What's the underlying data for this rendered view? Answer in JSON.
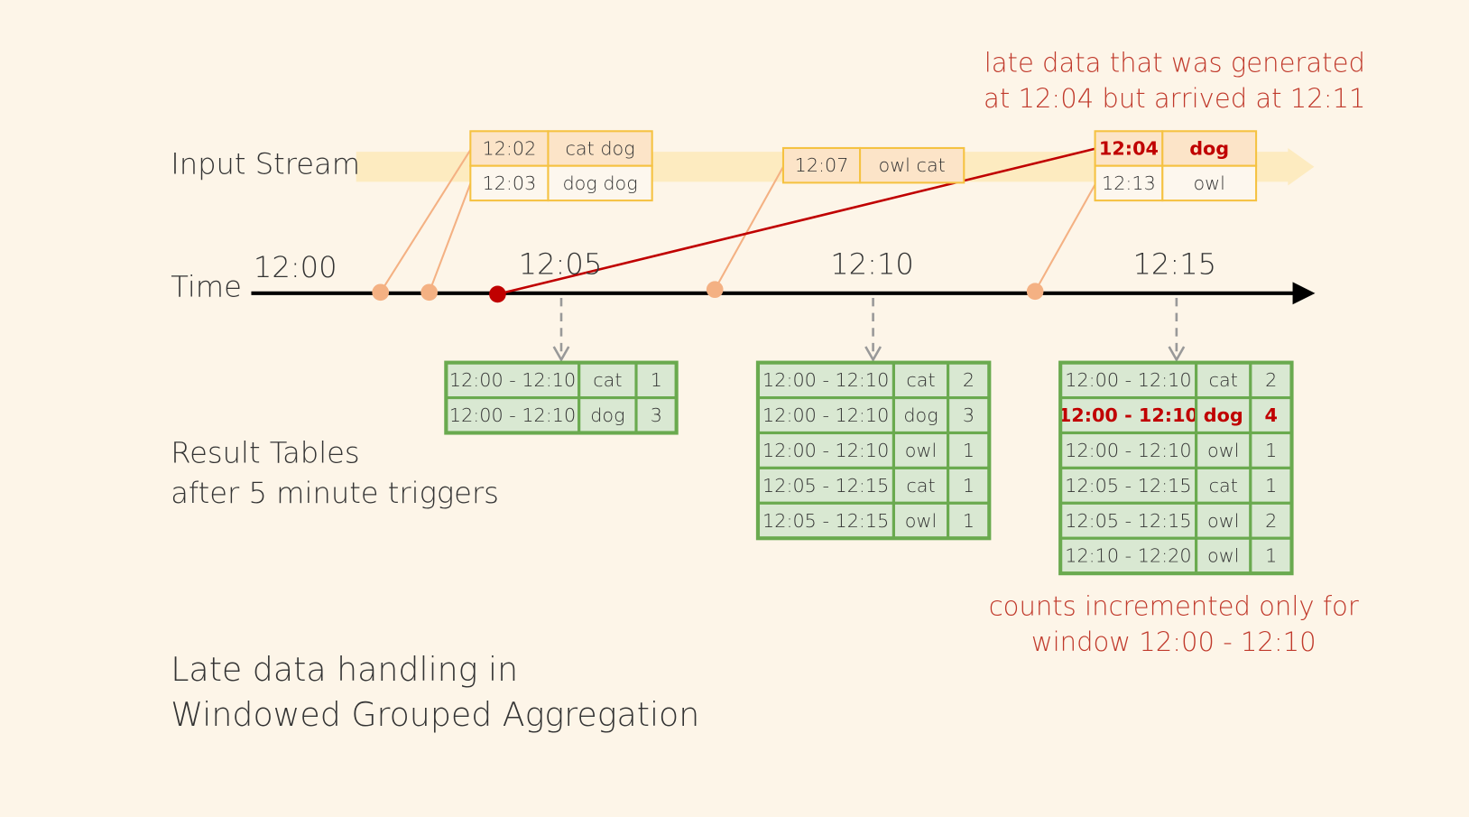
{
  "labels": {
    "input_stream": "Input Stream",
    "time": "Time",
    "result_tables": [
      "Result Tables",
      "after 5 minute triggers"
    ],
    "title": [
      "Late data handling in",
      "Windowed Grouped Aggregation"
    ]
  },
  "annotations": {
    "late_data": [
      "late data that was generated",
      "at 12:04 but arrived at 12:11"
    ],
    "counts": [
      "counts incremented only for",
      "window 12:00 - 12:10"
    ]
  },
  "time_ticks": [
    "12:00",
    "12:05",
    "12:10",
    "12:15"
  ],
  "input_batches": [
    {
      "rows": [
        [
          "12:02",
          "cat dog"
        ],
        [
          "12:03",
          "dog dog"
        ]
      ]
    },
    {
      "rows": [
        [
          "12:07",
          "owl cat"
        ]
      ]
    },
    {
      "rows": [
        [
          "12:04",
          "dog"
        ],
        [
          "12:13",
          "owl"
        ]
      ]
    }
  ],
  "result_tables": [
    {
      "rows": [
        [
          "12:00 - 12:10",
          "cat",
          1
        ],
        [
          "12:00 - 12:10",
          "dog",
          3
        ]
      ]
    },
    {
      "rows": [
        [
          "12:00 - 12:10",
          "cat",
          2
        ],
        [
          "12:00 - 12:10",
          "dog",
          3
        ],
        [
          "12:00 - 12:10",
          "owl",
          1
        ],
        [
          "12:05 - 12:15",
          "cat",
          1
        ],
        [
          "12:05 - 12:15",
          "owl",
          1
        ]
      ]
    },
    {
      "rows": [
        [
          "12:00 - 12:10",
          "cat",
          2
        ],
        [
          "12:00 - 12:10",
          "dog",
          4
        ],
        [
          "12:00 - 12:10",
          "owl",
          1
        ],
        [
          "12:05 - 12:15",
          "cat",
          1
        ],
        [
          "12:05 - 12:15",
          "owl",
          2
        ],
        [
          "12:10 - 12:20",
          "owl",
          1
        ]
      ]
    }
  ]
}
